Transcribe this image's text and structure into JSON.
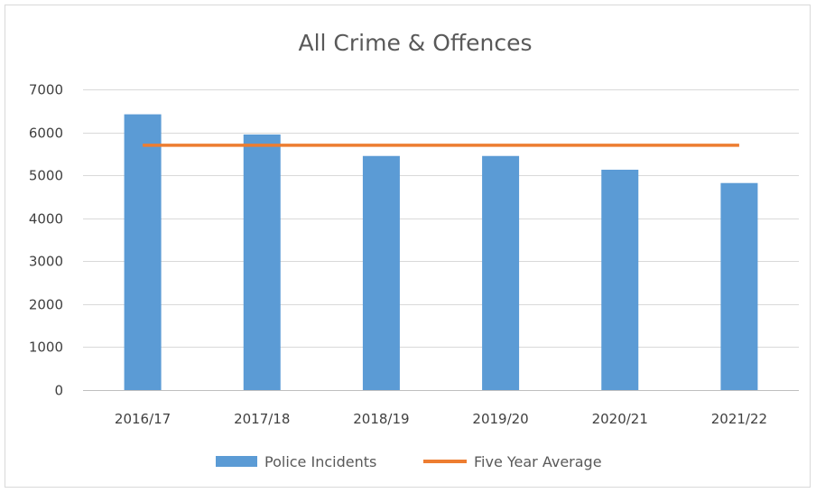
{
  "chart_data": {
    "type": "bar",
    "title": "All Crime & Offences",
    "xlabel": "",
    "ylabel": "",
    "categories": [
      "2016/17",
      "2017/18",
      "2018/19",
      "2019/20",
      "2020/21",
      "2021/22"
    ],
    "series": [
      {
        "name": "Police Incidents",
        "type": "bar",
        "color": "#5b9bd5",
        "values": [
          6420,
          5950,
          5450,
          5450,
          5130,
          4820
        ]
      },
      {
        "name": "Five Year Average",
        "type": "line",
        "color": "#ed7d31",
        "values": [
          5700,
          5700,
          5700,
          5700,
          5700,
          5700
        ]
      }
    ],
    "ylim": [
      0,
      7000
    ],
    "yticks": [
      "0",
      "1000",
      "2000",
      "3000",
      "4000",
      "5000",
      "6000",
      "7000"
    ],
    "grid": true,
    "legend_position": "bottom"
  }
}
